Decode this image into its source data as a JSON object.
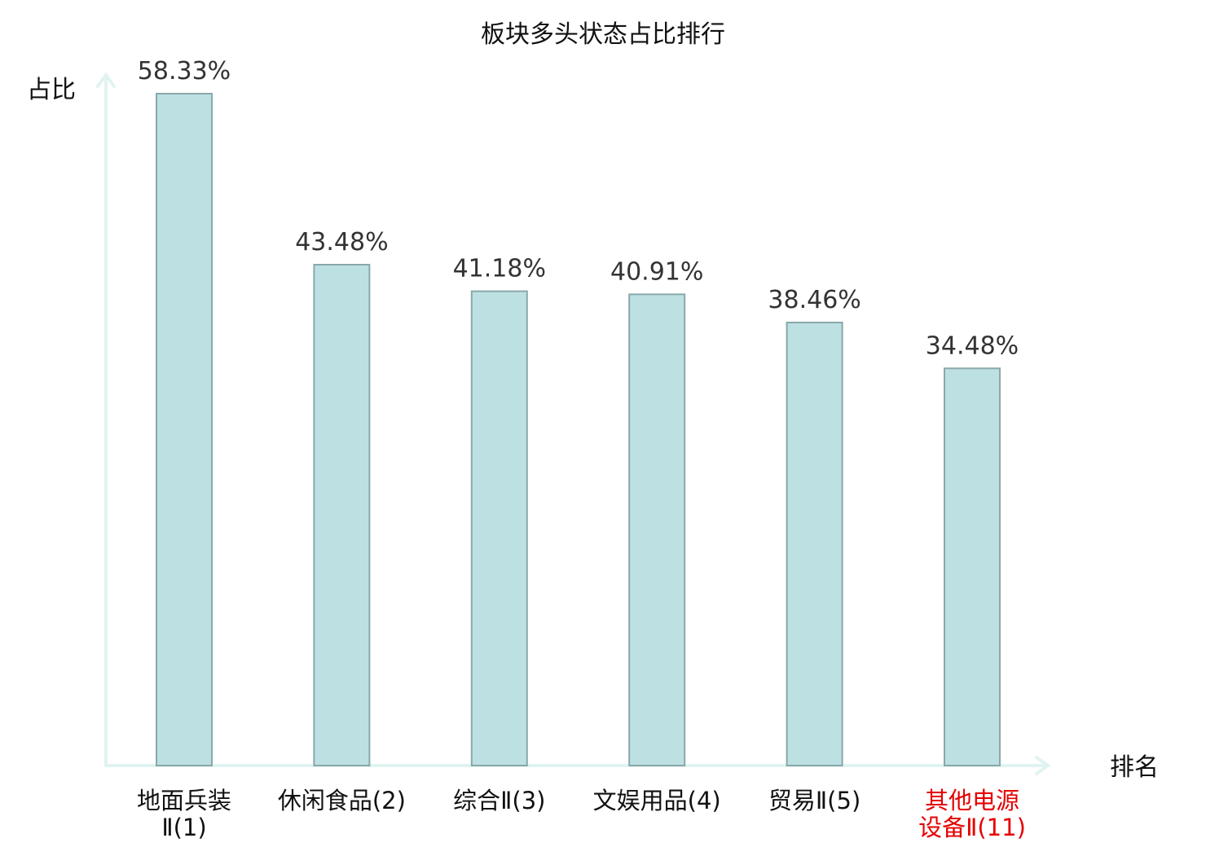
{
  "chart_data": {
    "type": "bar",
    "title": "板块多头状态占比排行",
    "ylabel": "占比",
    "xlabel": "排名",
    "ylim": [
      0,
      60
    ],
    "categories": [
      {
        "lines": [
          "地面兵装",
          "Ⅱ(1)"
        ],
        "highlight": false
      },
      {
        "lines": [
          "休闲食品(2)"
        ],
        "highlight": false
      },
      {
        "lines": [
          "综合Ⅱ(3)"
        ],
        "highlight": false
      },
      {
        "lines": [
          "文娱用品(4)"
        ],
        "highlight": false
      },
      {
        "lines": [
          "贸易Ⅱ(5)"
        ],
        "highlight": false
      },
      {
        "lines": [
          "其他电源",
          "设备Ⅱ(11)"
        ],
        "highlight": true
      }
    ],
    "values": [
      58.33,
      43.48,
      41.18,
      40.91,
      38.46,
      34.48
    ],
    "value_labels": [
      "58.33%",
      "43.48%",
      "41.18%",
      "40.91%",
      "38.46%",
      "34.48%"
    ],
    "colors": {
      "bar_fill": "#bde0e3",
      "bar_stroke": "#8aa8aa",
      "axis": "#e0f3f1",
      "highlight_label": "#e60000"
    },
    "grid": false,
    "legend": "none"
  }
}
